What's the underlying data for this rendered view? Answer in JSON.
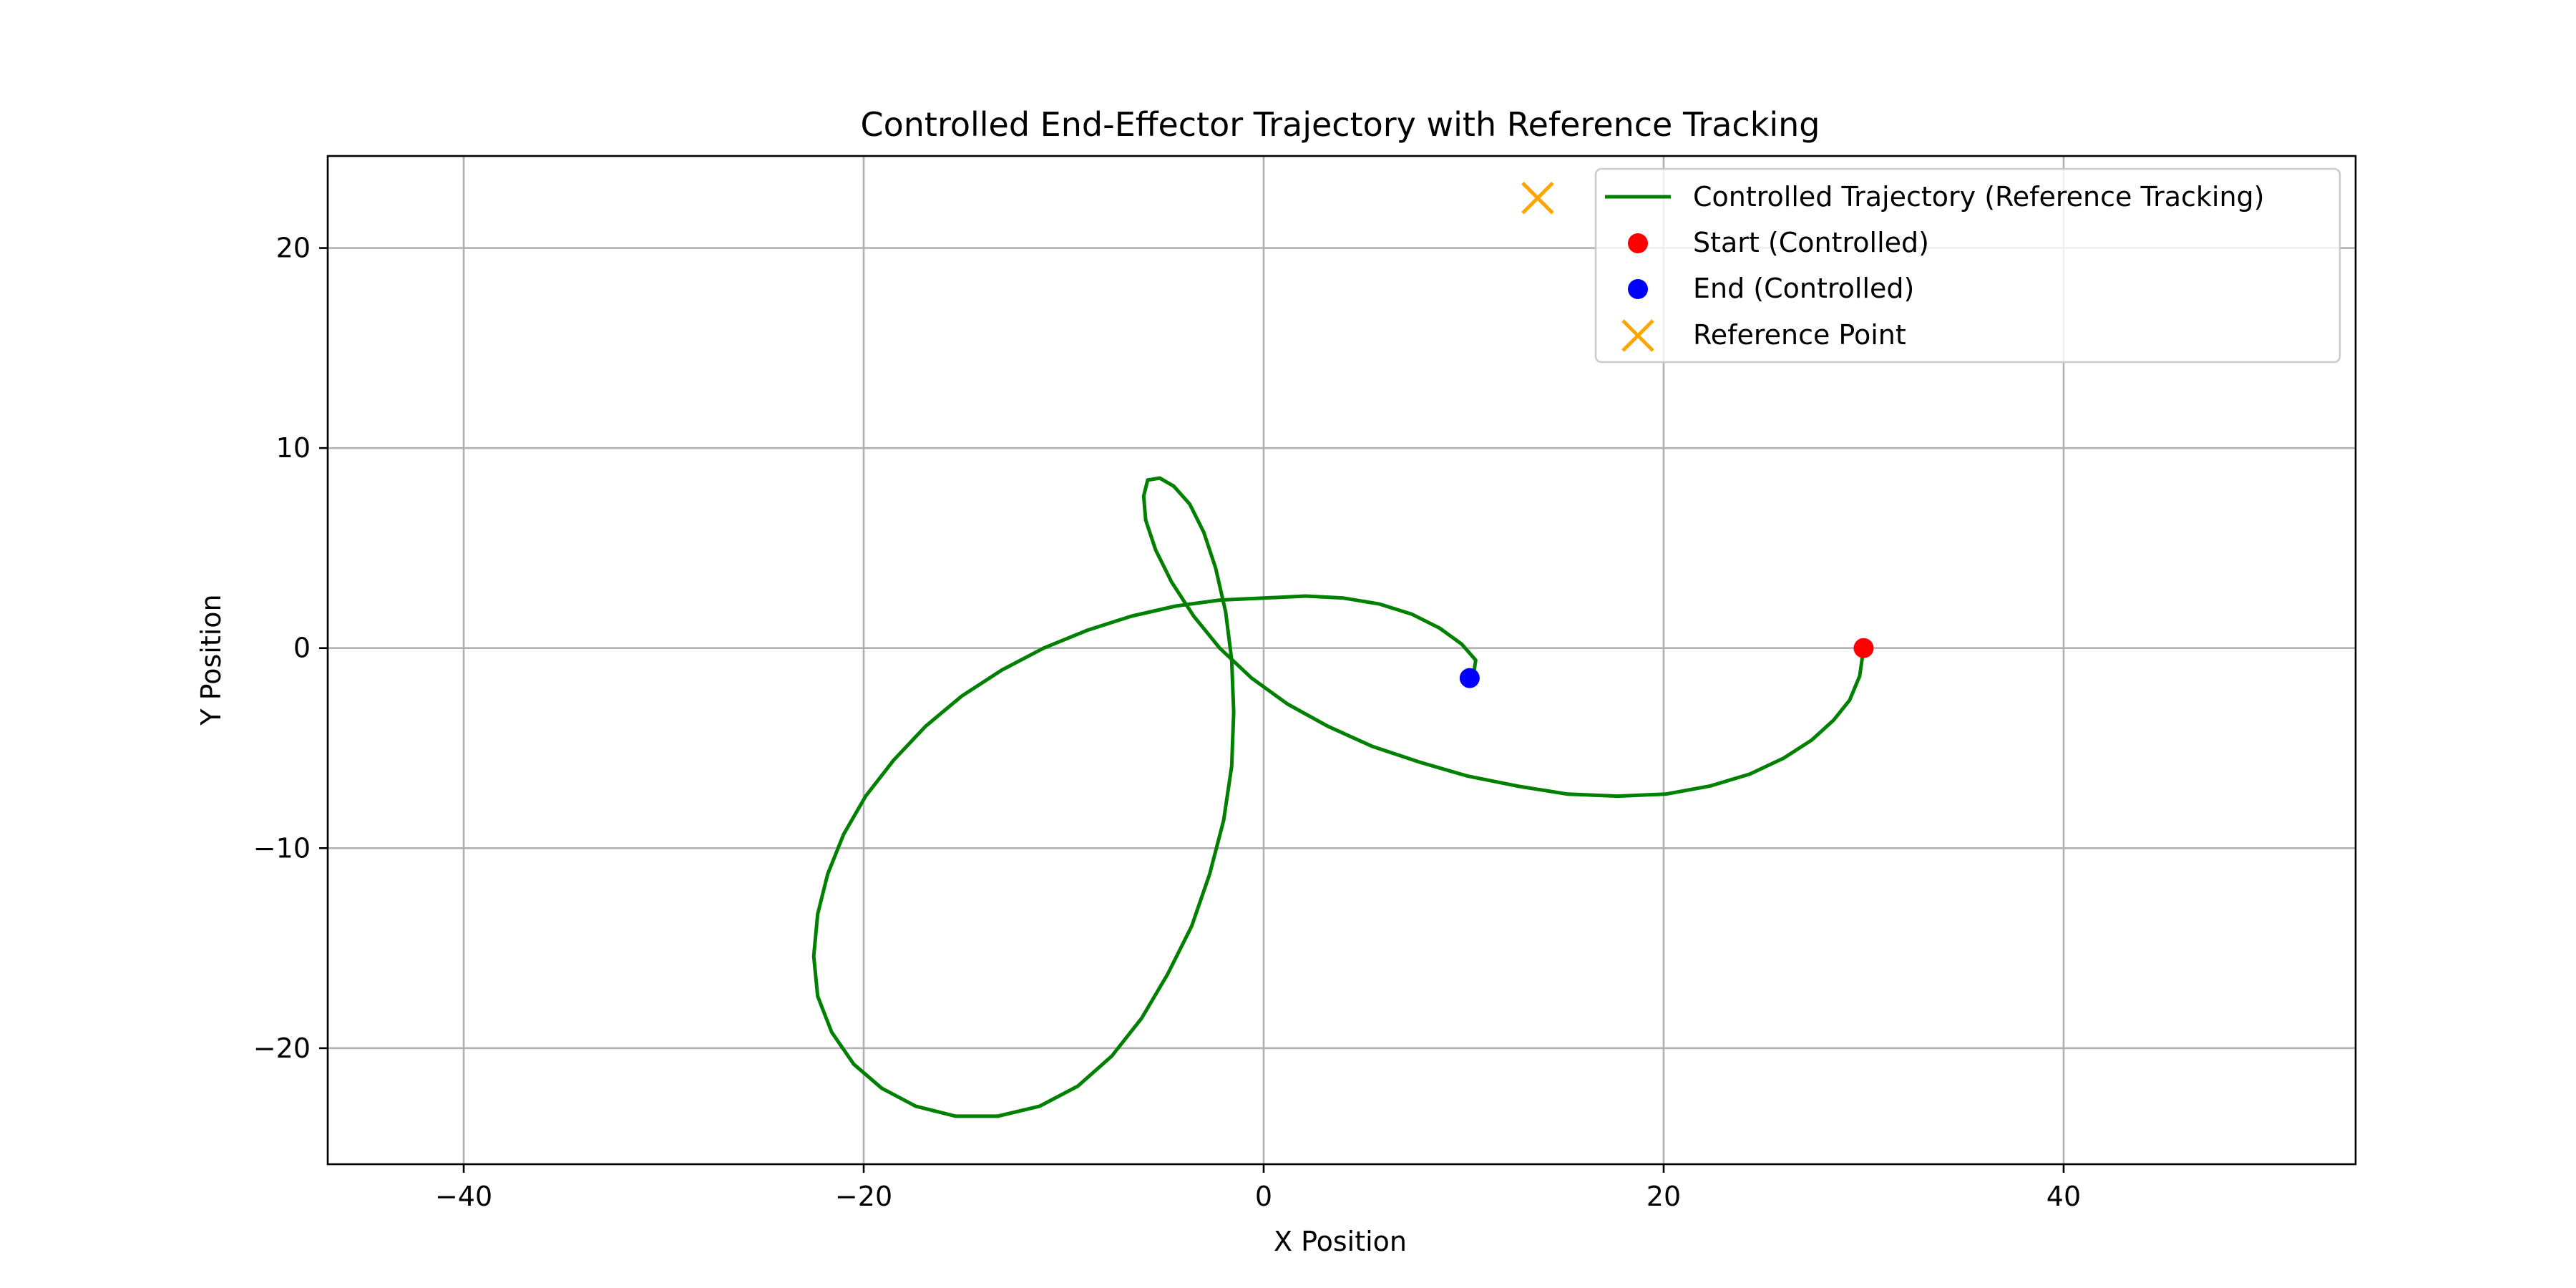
{
  "chart_data": {
    "type": "line",
    "title": "Controlled End-Effector Trajectory with Reference Tracking",
    "xlabel": "X Position",
    "ylabel": "Y Position",
    "xlim": [
      -46.8,
      54.6
    ],
    "ylim": [
      -25.8,
      24.6
    ],
    "xticks": [
      -40,
      -20,
      0,
      20,
      40
    ],
    "yticks": [
      -20,
      -10,
      0,
      10,
      20
    ],
    "xtick_labels": [
      "−40",
      "−20",
      "0",
      "20",
      "40"
    ],
    "ytick_labels": [
      "−20",
      "−10",
      "0",
      "10",
      "20"
    ],
    "grid": true,
    "legend_position": "top-right",
    "colors": {
      "trajectory": "#008000",
      "start": "#ff0000",
      "end": "#0000ff",
      "reference": "#ffa500"
    },
    "series": [
      {
        "name": "Controlled Trajectory (Reference Tracking)",
        "kind": "line",
        "color": "#008000",
        "points": [
          [
            30.0,
            0.0
          ],
          [
            29.8,
            -1.4
          ],
          [
            29.3,
            -2.6
          ],
          [
            28.5,
            -3.6
          ],
          [
            27.4,
            -4.6
          ],
          [
            26.0,
            -5.5
          ],
          [
            24.3,
            -6.3
          ],
          [
            22.3,
            -6.9
          ],
          [
            20.1,
            -7.3
          ],
          [
            17.7,
            -7.4
          ],
          [
            15.2,
            -7.3
          ],
          [
            12.7,
            -6.9
          ],
          [
            10.2,
            -6.4
          ],
          [
            7.8,
            -5.7
          ],
          [
            5.4,
            -4.9
          ],
          [
            3.2,
            -3.9
          ],
          [
            1.2,
            -2.8
          ],
          [
            -0.6,
            -1.5
          ],
          [
            -2.2,
            0.0
          ],
          [
            -3.5,
            1.6
          ],
          [
            -4.6,
            3.3
          ],
          [
            -5.4,
            4.9
          ],
          [
            -5.9,
            6.4
          ],
          [
            -6.0,
            7.6
          ],
          [
            -5.8,
            8.4
          ],
          [
            -5.2,
            8.5
          ],
          [
            -4.5,
            8.1
          ],
          [
            -3.7,
            7.2
          ],
          [
            -3.0,
            5.8
          ],
          [
            -2.4,
            4.0
          ],
          [
            -1.9,
            1.8
          ],
          [
            -1.6,
            -0.6
          ],
          [
            -1.5,
            -3.2
          ],
          [
            -1.6,
            -5.9
          ],
          [
            -2.0,
            -8.6
          ],
          [
            -2.7,
            -11.3
          ],
          [
            -3.6,
            -13.9
          ],
          [
            -4.8,
            -16.3
          ],
          [
            -6.1,
            -18.5
          ],
          [
            -7.6,
            -20.4
          ],
          [
            -9.3,
            -21.9
          ],
          [
            -11.2,
            -22.9
          ],
          [
            -13.3,
            -23.4
          ],
          [
            -15.4,
            -23.4
          ],
          [
            -17.4,
            -22.9
          ],
          [
            -19.1,
            -22.0
          ],
          [
            -20.5,
            -20.8
          ],
          [
            -21.6,
            -19.2
          ],
          [
            -22.3,
            -17.4
          ],
          [
            -22.5,
            -15.4
          ],
          [
            -22.3,
            -13.3
          ],
          [
            -21.8,
            -11.3
          ],
          [
            -21.0,
            -9.3
          ],
          [
            -19.9,
            -7.4
          ],
          [
            -18.5,
            -5.6
          ],
          [
            -16.9,
            -3.9
          ],
          [
            -15.1,
            -2.4
          ],
          [
            -13.1,
            -1.1
          ],
          [
            -11.0,
            0.0
          ],
          [
            -8.8,
            0.9
          ],
          [
            -6.6,
            1.6
          ],
          [
            -4.4,
            2.1
          ],
          [
            -2.2,
            2.4
          ],
          [
            0.0,
            2.5
          ],
          [
            2.1,
            2.6
          ],
          [
            4.0,
            2.5
          ],
          [
            5.8,
            2.2
          ],
          [
            7.4,
            1.7
          ],
          [
            8.8,
            1.0
          ],
          [
            9.9,
            0.2
          ],
          [
            10.6,
            -0.6
          ],
          [
            10.5,
            -1.3
          ],
          [
            10.3,
            -1.5
          ]
        ]
      },
      {
        "name": "Start (Controlled)",
        "kind": "point",
        "color": "#ff0000",
        "x": 30.0,
        "y": 0.0
      },
      {
        "name": "End (Controlled)",
        "kind": "point",
        "color": "#0000ff",
        "x": 10.3,
        "y": -1.5
      },
      {
        "name": "Reference Point",
        "kind": "cross",
        "color": "#ffa500",
        "x": 13.7,
        "y": 22.5
      }
    ],
    "legend": [
      "Controlled Trajectory (Reference Tracking)",
      "Start (Controlled)",
      "End (Controlled)",
      "Reference Point"
    ]
  }
}
